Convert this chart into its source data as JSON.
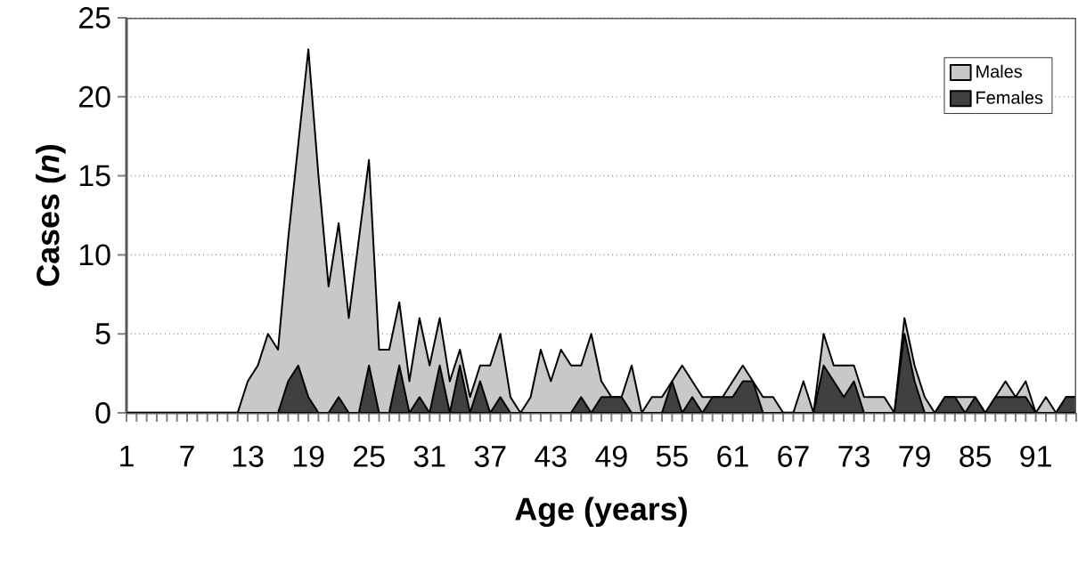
{
  "chart_data": {
    "type": "area",
    "xlabel": "Age (years)",
    "ylabel": "Cases (*n*)",
    "categories": [
      "1",
      null,
      null,
      null,
      null,
      null,
      "7",
      null,
      null,
      null,
      null,
      null,
      "13",
      null,
      null,
      null,
      null,
      null,
      "19",
      null,
      null,
      null,
      null,
      null,
      "25",
      null,
      null,
      null,
      null,
      null,
      "31",
      null,
      null,
      null,
      null,
      null,
      "37",
      null,
      null,
      null,
      null,
      null,
      "43",
      null,
      null,
      null,
      null,
      null,
      "49",
      null,
      null,
      null,
      null,
      null,
      "55",
      null,
      null,
      null,
      null,
      null,
      "61",
      null,
      null,
      null,
      null,
      null,
      "67",
      null,
      null,
      null,
      null,
      null,
      "73",
      null,
      null,
      null,
      null,
      null,
      "79",
      null,
      null,
      null,
      null,
      null,
      "85",
      null,
      null,
      null,
      null,
      null,
      "91",
      null,
      null,
      null,
      null
    ],
    "series": [
      {
        "name": "Males",
        "color": "#c8c8c8",
        "values": [
          0,
          0,
          0,
          0,
          0,
          0,
          0,
          0,
          0,
          0,
          0,
          0,
          2,
          3,
          5,
          4,
          11,
          17,
          23,
          15,
          8,
          12,
          6,
          11,
          16,
          4,
          4,
          7,
          2,
          6,
          3,
          6,
          2,
          4,
          1,
          3,
          3,
          5,
          1,
          0,
          1,
          4,
          2,
          4,
          3,
          3,
          5,
          2,
          1,
          1,
          3,
          0,
          1,
          1,
          2,
          3,
          2,
          1,
          1,
          1,
          2,
          3,
          2,
          1,
          1,
          0,
          0,
          2,
          0,
          5,
          3,
          3,
          3,
          1,
          1,
          1,
          0,
          6,
          3,
          1,
          0,
          1,
          1,
          1,
          1,
          0,
          1,
          2,
          1,
          2,
          0,
          1,
          0,
          1,
          1
        ]
      },
      {
        "name": "Females",
        "color": "#404040",
        "values": [
          0,
          0,
          0,
          0,
          0,
          0,
          0,
          0,
          0,
          0,
          0,
          0,
          0,
          0,
          0,
          0,
          2,
          3,
          1,
          0,
          0,
          1,
          0,
          0,
          3,
          0,
          0,
          3,
          0,
          1,
          0,
          3,
          0,
          3,
          0,
          2,
          0,
          1,
          0,
          0,
          0,
          0,
          0,
          0,
          0,
          1,
          0,
          1,
          1,
          1,
          0,
          0,
          0,
          0,
          2,
          0,
          1,
          0,
          1,
          1,
          1,
          2,
          2,
          0,
          0,
          0,
          0,
          0,
          0,
          3,
          2,
          1,
          2,
          0,
          0,
          0,
          0,
          5,
          2,
          0,
          0,
          1,
          1,
          0,
          1,
          0,
          1,
          1,
          1,
          1,
          0,
          0,
          0,
          1,
          1
        ]
      }
    ],
    "ylim": [
      0,
      25
    ],
    "yticks": [
      0,
      5,
      10,
      15,
      20,
      25
    ],
    "grid": "y",
    "legend": "top right"
  }
}
